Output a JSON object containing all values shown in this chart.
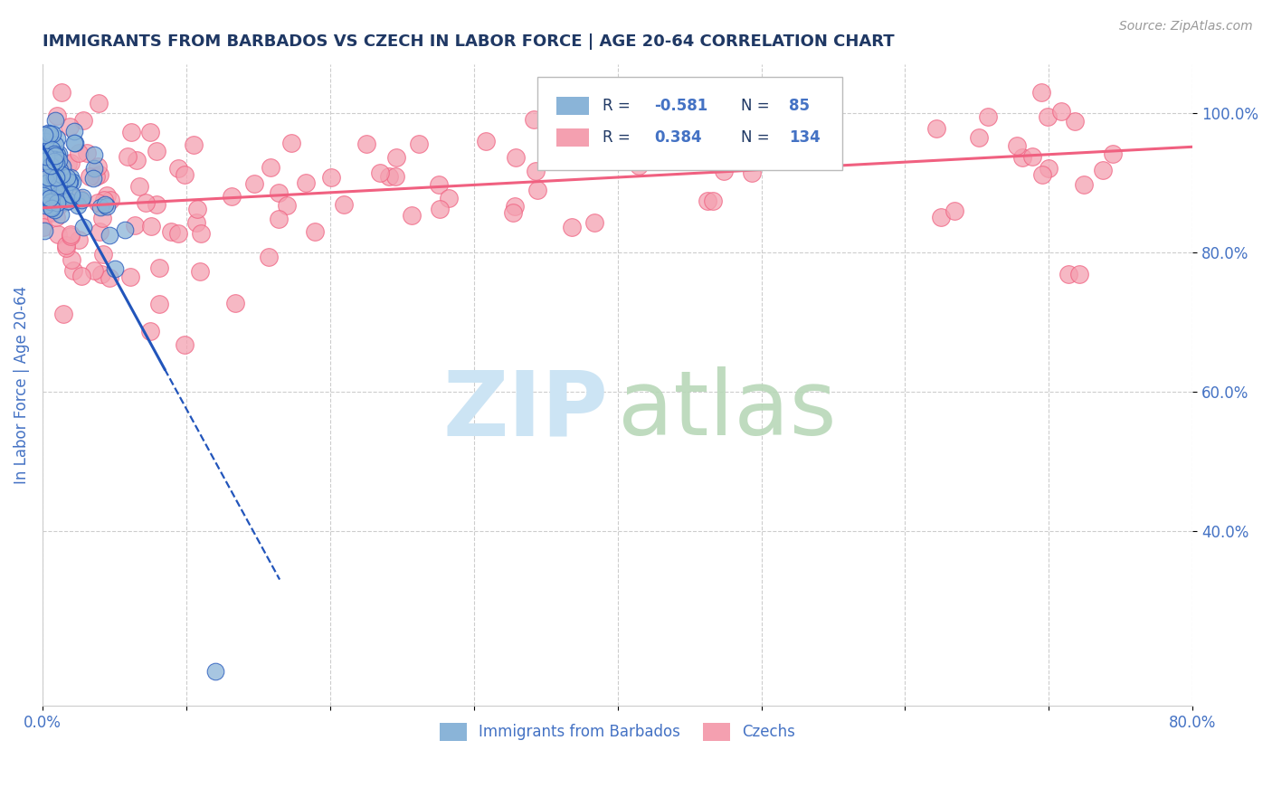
{
  "title": "IMMIGRANTS FROM BARBADOS VS CZECH IN LABOR FORCE | AGE 20-64 CORRELATION CHART",
  "source": "Source: ZipAtlas.com",
  "ylabel": "In Labor Force | Age 20-64",
  "xlim": [
    0.0,
    0.8
  ],
  "ylim": [
    0.15,
    1.07
  ],
  "xticks": [
    0.0,
    0.1,
    0.2,
    0.3,
    0.4,
    0.5,
    0.6,
    0.7,
    0.8
  ],
  "xticklabels": [
    "0.0%",
    "",
    "",
    "",
    "",
    "",
    "",
    "",
    "80.0%"
  ],
  "yticks": [
    0.4,
    0.6,
    0.8,
    1.0
  ],
  "yticklabels": [
    "40.0%",
    "60.0%",
    "80.0%",
    "100.0%"
  ],
  "barbados_color": "#8ab4d8",
  "czech_color": "#f4a0b0",
  "barbados_line_color": "#2255bb",
  "czech_line_color": "#f06080",
  "background_color": "#ffffff",
  "grid_color": "#c8c8c8",
  "title_color": "#1f3864",
  "axis_label_color": "#4472c4",
  "legend_value_color": "#1f3864",
  "watermark_zip_color": "#cce4f4",
  "watermark_atlas_color": "#b8d8b8"
}
